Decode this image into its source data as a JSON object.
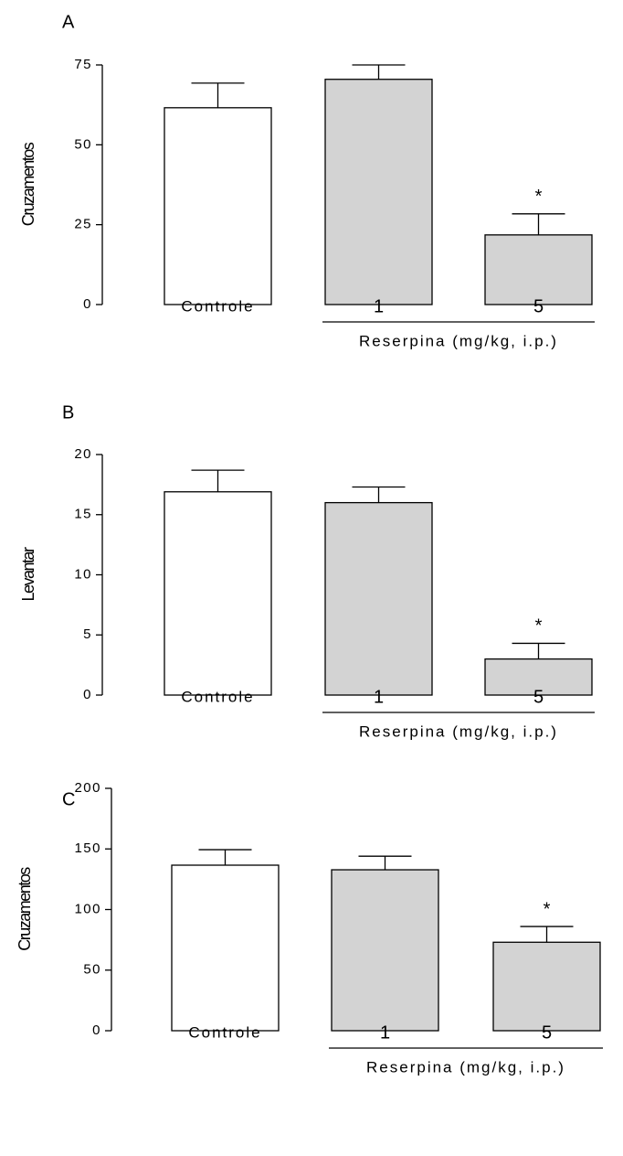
{
  "chart_data": [
    {
      "type": "bar",
      "label": "A",
      "y_label": "Cruzamentos",
      "categories": [
        "Controle",
        "1",
        "5"
      ],
      "values": [
        61.6,
        70.5,
        21.8
      ],
      "errors": [
        7.7,
        4.5,
        6.6
      ],
      "colors": [
        "#ffffff",
        "#d3d3d3",
        "#d3d3d3"
      ],
      "ylim": [
        0,
        75
      ],
      "yticks": [
        0,
        25,
        50,
        75
      ],
      "group_label": "Reserpina (mg/kg, i.p.)",
      "annotations": [
        {
          "text": "*",
          "category": "5"
        }
      ]
    },
    {
      "type": "bar",
      "label": "B",
      "y_label": "Levantar",
      "categories": [
        "Controle",
        "1",
        "5"
      ],
      "values": [
        16.9,
        16.0,
        3.0
      ],
      "errors": [
        1.8,
        1.3,
        1.3
      ],
      "colors": [
        "#ffffff",
        "#d3d3d3",
        "#d3d3d3"
      ],
      "ylim": [
        0,
        20
      ],
      "yticks": [
        0,
        5,
        10,
        15,
        20
      ],
      "group_label": "Reserpina (mg/kg, i.p.)",
      "annotations": [
        {
          "text": "*",
          "category": "5"
        }
      ]
    },
    {
      "type": "bar",
      "label": "C",
      "y_label": "Cruzamentos",
      "categories": [
        "Controle",
        "1",
        "5"
      ],
      "values": [
        136.6,
        132.8,
        73
      ],
      "errors": [
        12.8,
        11.2,
        13
      ],
      "colors": [
        "#ffffff",
        "#d3d3d3",
        "#d3d3d3"
      ],
      "ylim": [
        0,
        200
      ],
      "yticks": [
        0,
        50,
        100,
        150,
        200
      ],
      "group_label": "Reserpina (mg/kg, i.p.)",
      "annotations": [
        {
          "text": "*",
          "category": "5"
        }
      ]
    }
  ]
}
